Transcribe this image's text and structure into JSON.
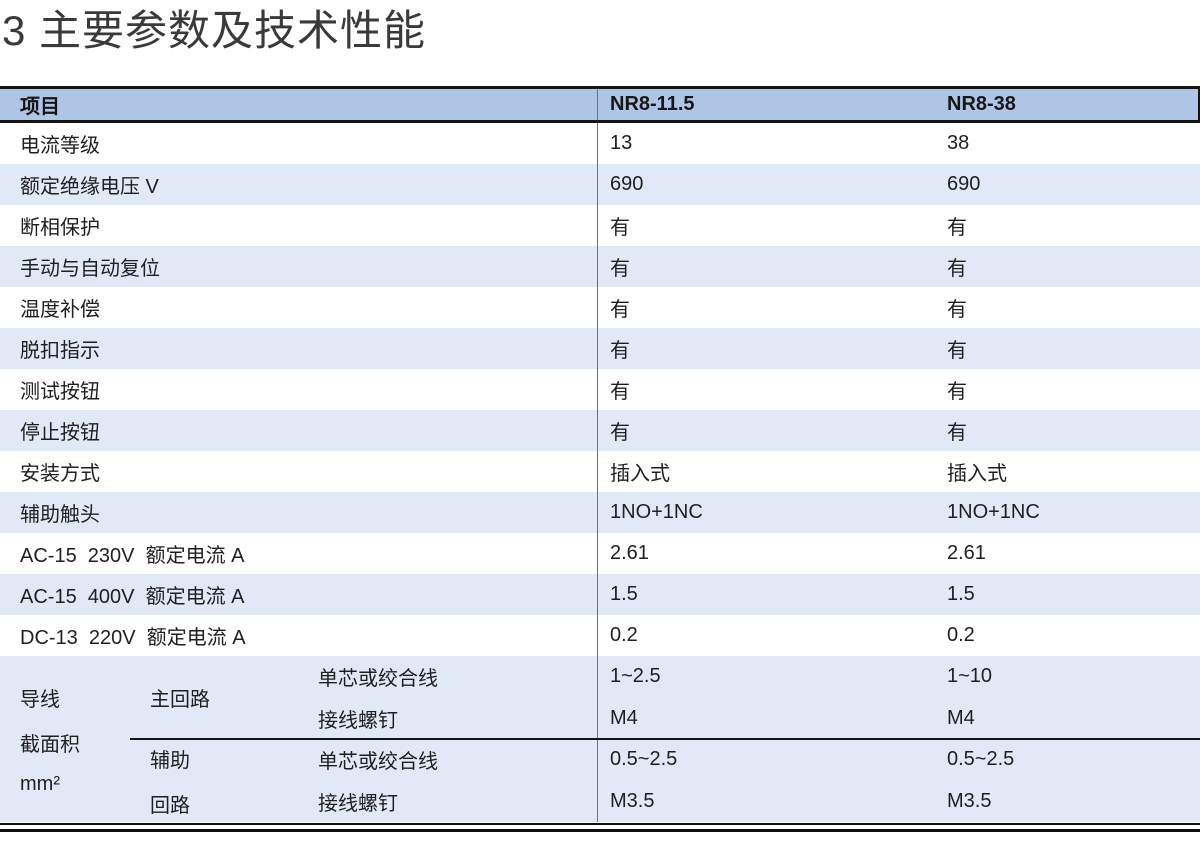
{
  "page": {
    "title": "3 主要参数及技术性能"
  },
  "table": {
    "header": {
      "col_item": "项目",
      "col_model1": "NR8-11.5",
      "col_model2": "NR8-38"
    },
    "rows": [
      {
        "label": "电流等级",
        "v1": "13",
        "v2": "38"
      },
      {
        "label": "额定绝缘电压 V",
        "v1": "690",
        "v2": "690"
      },
      {
        "label": "断相保护",
        "v1": "有",
        "v2": "有"
      },
      {
        "label": "手动与自动复位",
        "v1": "有",
        "v2": "有"
      },
      {
        "label": "温度补偿",
        "v1": "有",
        "v2": "有"
      },
      {
        "label": "脱扣指示",
        "v1": "有",
        "v2": "有"
      },
      {
        "label": "测试按钮",
        "v1": "有",
        "v2": "有"
      },
      {
        "label": "停止按钮",
        "v1": "有",
        "v2": "有"
      },
      {
        "label": "安装方式",
        "v1": "插入式",
        "v2": "插入式"
      },
      {
        "label": "辅助触头",
        "v1": "1NO+1NC",
        "v2": "1NO+1NC"
      },
      {
        "label": "AC-15  230V  额定电流 A",
        "v1": "2.61",
        "v2": "2.61"
      },
      {
        "label": "AC-15  400V  额定电流 A",
        "v1": "1.5",
        "v2": "1.5"
      },
      {
        "label": "DC-13  220V  额定电流 A",
        "v1": "0.2",
        "v2": "0.2"
      }
    ],
    "wire_section": {
      "group_label_lines": [
        "导线",
        "截面积",
        "mm²"
      ],
      "main_loop": {
        "name_lines": [
          "主回路"
        ],
        "rows": [
          {
            "label": "单芯或绞合线",
            "v1": "1~2.5",
            "v2": "1~10"
          },
          {
            "label": "接线螺钉",
            "v1": "M4",
            "v2": "M4"
          }
        ]
      },
      "aux_loop": {
        "name_lines": [
          "辅助",
          "回路"
        ],
        "rows": [
          {
            "label": "单芯或绞合线",
            "v1": "0.5~2.5",
            "v2": "0.5~2.5"
          },
          {
            "label": "接线螺钉",
            "v1": "M3.5",
            "v2": "M3.5"
          }
        ]
      }
    },
    "colors": {
      "header_bg": "#aec5e6",
      "stripe_bg": "#e2e9f6",
      "rule_dark": "#141414",
      "column_divider_gray": "#6f6f6f",
      "title_text": "#3a3a3a",
      "body_text": "#1f1f1f"
    }
  }
}
